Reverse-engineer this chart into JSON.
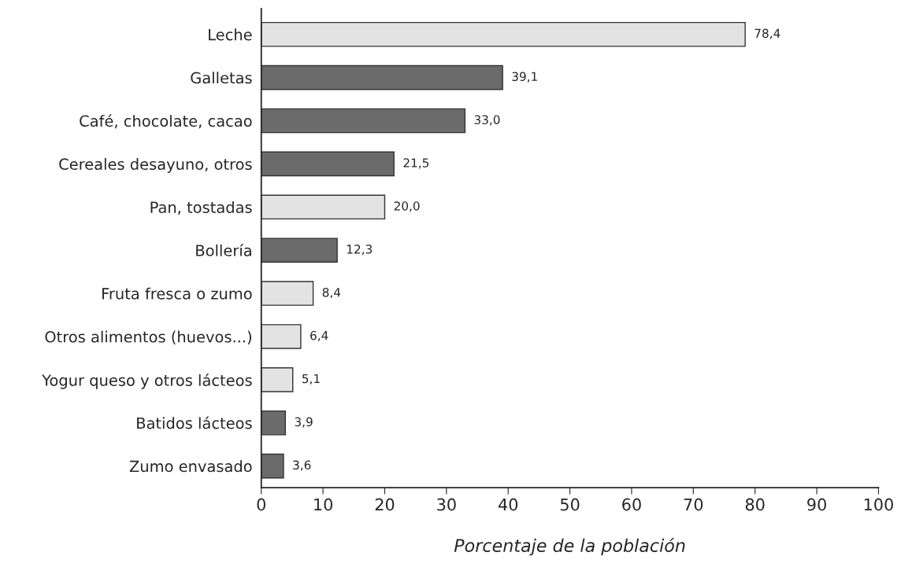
{
  "chart_data": {
    "type": "bar",
    "orientation": "horizontal",
    "xlabel": "Porcentaje de la población",
    "categories": [
      "Leche",
      "Galletas",
      "Café, chocolate, cacao",
      "Cereales desayuno, otros",
      "Pan, tostadas",
      "Bollería",
      "Fruta fresca o zumo",
      "Otros alimentos (huevos...)",
      "Yogur queso y otros lácteos",
      "Batidos lácteos",
      "Zumo envasado"
    ],
    "values": [
      78.4,
      39.1,
      33.0,
      21.5,
      20.0,
      12.3,
      8.4,
      6.4,
      5.1,
      3.9,
      3.6
    ],
    "value_labels": [
      "78,4",
      "39,1",
      "33,0",
      "21,5",
      "20,0",
      "12,3",
      "8,4",
      "6,4",
      "5,1",
      "3,9",
      "3,6"
    ],
    "colors": [
      "#e3e3e3",
      "#6b6b6b",
      "#6b6b6b",
      "#6b6b6b",
      "#e3e3e3",
      "#6b6b6b",
      "#e3e3e3",
      "#e3e3e3",
      "#e3e3e3",
      "#6b6b6b",
      "#6b6b6b"
    ],
    "xlim": [
      0,
      100
    ],
    "xticks": [
      0,
      10,
      20,
      30,
      40,
      50,
      60,
      70,
      80,
      90,
      100
    ],
    "grid": false,
    "legend": false
  }
}
